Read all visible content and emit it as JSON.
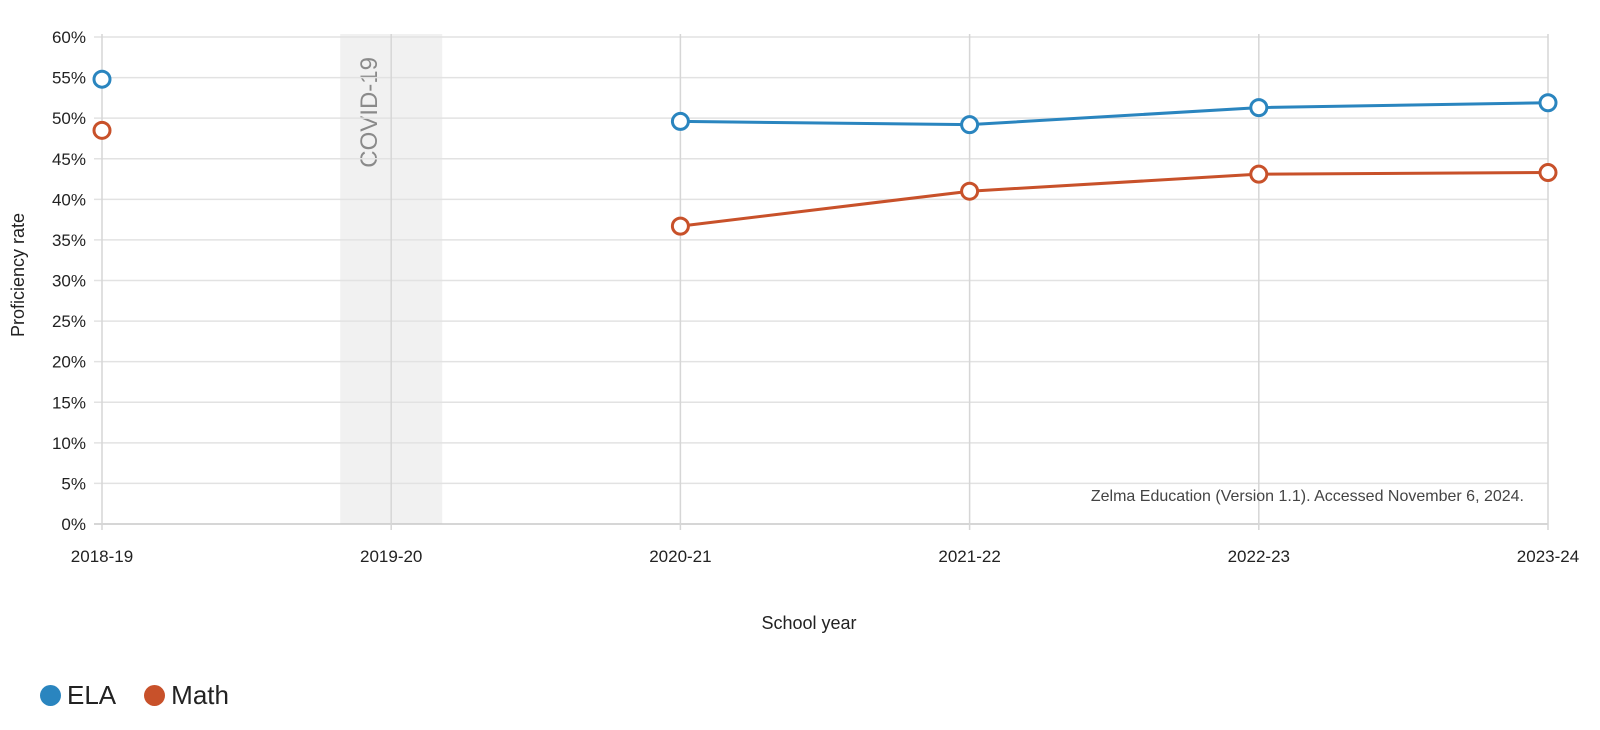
{
  "chart_data": {
    "type": "line",
    "categories": [
      "2018-19",
      "2019-20",
      "2020-21",
      "2021-22",
      "2022-23",
      "2023-24"
    ],
    "series": [
      {
        "name": "ELA",
        "color": "#2a85bf",
        "values": [
          54.8,
          null,
          49.6,
          49.2,
          51.3,
          51.9
        ]
      },
      {
        "name": "Math",
        "color": "#c8512a",
        "values": [
          48.5,
          null,
          36.7,
          41.0,
          43.1,
          43.3
        ]
      }
    ],
    "xlabel": "School year",
    "ylabel": "Proficiency rate",
    "ylim": [
      0,
      60
    ],
    "y_ticks": [
      0,
      5,
      10,
      15,
      20,
      25,
      30,
      35,
      40,
      45,
      50,
      55,
      60
    ],
    "y_tick_format": "%",
    "grid": true,
    "legend_position": "bottom-left",
    "shaded_band": {
      "category": "2019-20",
      "label": "COVID-19"
    },
    "annotation": "Zelma Education (Version 1.1). Accessed November 6, 2024."
  }
}
